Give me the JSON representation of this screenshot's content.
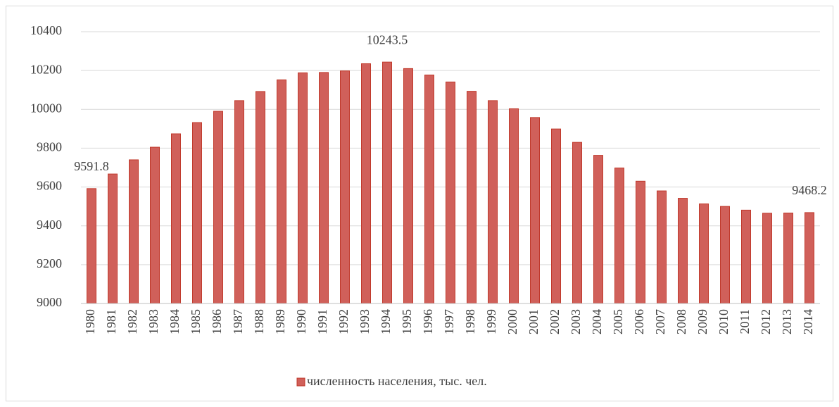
{
  "chart_data": {
    "type": "bar",
    "categories": [
      "1980",
      "1981",
      "1982",
      "1983",
      "1984",
      "1985",
      "1986",
      "1987",
      "1988",
      "1989",
      "1990",
      "1991",
      "1992",
      "1993",
      "1994",
      "1995",
      "1996",
      "1997",
      "1998",
      "1999",
      "2000",
      "2001",
      "2002",
      "2003",
      "2004",
      "2005",
      "2006",
      "2007",
      "2008",
      "2009",
      "2010",
      "2011",
      "2012",
      "2013",
      "2014"
    ],
    "series": [
      {
        "name": "численность населения, тыс. чел.",
        "color": "#d0605a",
        "stroke": "#c0392b",
        "values": [
          9591.8,
          9667,
          9740,
          9805,
          9874,
          9932,
          9990,
          10045,
          10092,
          10152,
          10188,
          10190,
          10198,
          10235,
          10243.5,
          10210,
          10177,
          10141,
          10093,
          10045,
          10003,
          9958,
          9899,
          9830,
          9763,
          9698,
          9630,
          9580,
          9542,
          9513,
          9500,
          9481,
          9465,
          9466,
          9468.2
        ],
        "value_labels": [
          "9591.8",
          null,
          null,
          null,
          null,
          null,
          null,
          null,
          null,
          null,
          null,
          null,
          null,
          null,
          "10243.5",
          null,
          null,
          null,
          null,
          null,
          null,
          null,
          null,
          null,
          null,
          null,
          null,
          null,
          null,
          null,
          null,
          null,
          null,
          null,
          "9468.2"
        ]
      }
    ],
    "ylim": [
      9000,
      10400
    ],
    "yticks": [
      9000,
      9200,
      9400,
      9600,
      9800,
      10000,
      10200,
      10400
    ],
    "grid": true,
    "legend": "bottom"
  }
}
